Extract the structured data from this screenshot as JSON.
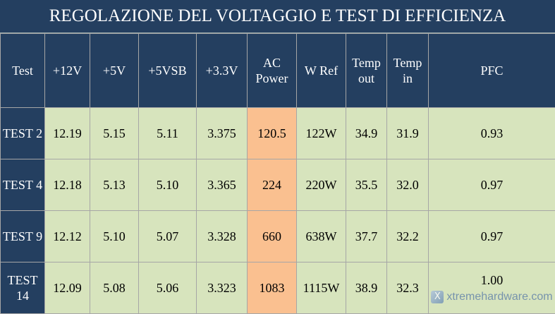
{
  "title": "REGOLAZIONE DEL VOLTAGGIO E TEST DI EFFICIENZA",
  "headers": [
    "Test",
    "+12V",
    "+5V",
    "+5VSB",
    "+3.3V",
    "AC Power",
    "W Ref",
    "Temp out",
    "Temp in",
    "PFC"
  ],
  "rows": [
    [
      "TEST 2",
      "12.19",
      "5.15",
      "5.11",
      "3.375",
      "120.5",
      "122W",
      "34.9",
      "31.9",
      "0.93"
    ],
    [
      "TEST 4",
      "12.18",
      "5.13",
      "5.10",
      "3.365",
      "224",
      "220W",
      "35.5",
      "32.0",
      "0.97"
    ],
    [
      "TEST 9",
      "12.12",
      "5.10",
      "5.07",
      "3.328",
      "660",
      "638W",
      "37.7",
      "32.2",
      "0.97"
    ],
    [
      "TEST 14",
      "12.09",
      "5.08",
      "5.06",
      "3.323",
      "1083",
      "1115W",
      "38.9",
      "32.3",
      "1.00"
    ]
  ],
  "watermark": {
    "text": "xtremehardware.com",
    "logo": "X"
  },
  "colors": {
    "header": "#243f60",
    "cell": "#d7e4bd",
    "ac_power": "#fac090"
  }
}
